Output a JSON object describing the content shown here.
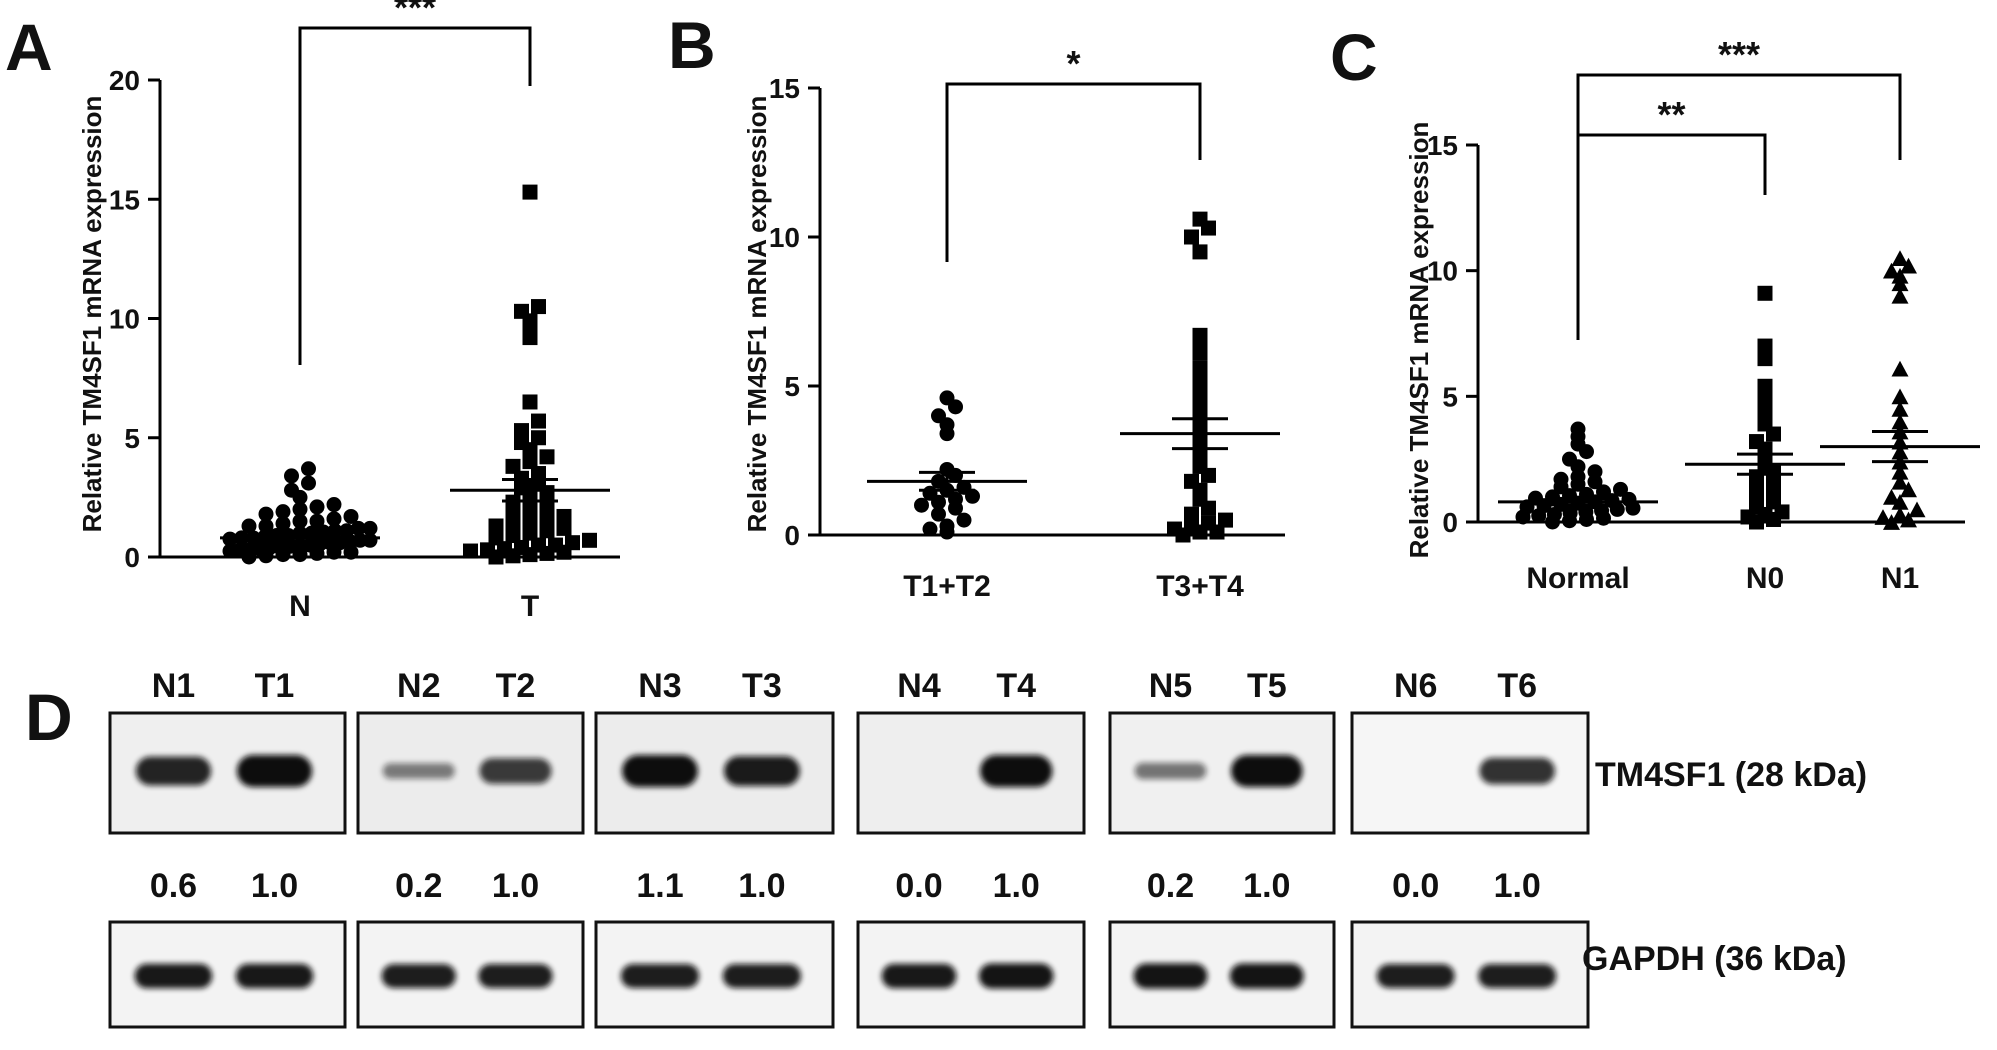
{
  "chart_data": [
    {
      "type": "scatter",
      "panel": "A",
      "ylabel": "Relative TM4SF1 mRNA expression",
      "ylim": [
        0,
        20
      ],
      "yticks": [
        0,
        5,
        10,
        15,
        20
      ],
      "categories": [
        "N",
        "T"
      ],
      "series": [
        {
          "marker": "circle",
          "values": [
            0.0,
            0.05,
            0.1,
            0.1,
            0.15,
            0.2,
            0.2,
            0.25,
            0.3,
            0.3,
            0.35,
            0.4,
            0.4,
            0.45,
            0.5,
            0.5,
            0.55,
            0.6,
            0.6,
            0.65,
            0.7,
            0.7,
            0.75,
            0.8,
            0.8,
            0.85,
            0.9,
            0.9,
            1.0,
            1.0,
            1.05,
            1.1,
            1.1,
            1.2,
            1.2,
            1.3,
            1.3,
            1.4,
            1.5,
            1.5,
            1.6,
            1.7,
            1.8,
            1.9,
            2.0,
            2.1,
            2.2,
            2.5,
            2.8,
            3.1,
            3.4,
            3.7
          ],
          "mean": 0.8,
          "sem": 0.12
        },
        {
          "marker": "square",
          "values": [
            0.0,
            0.05,
            0.1,
            0.15,
            0.2,
            0.25,
            0.3,
            0.35,
            0.4,
            0.5,
            0.5,
            0.6,
            0.7,
            0.8,
            0.9,
            1.0,
            1.1,
            1.2,
            1.3,
            1.4,
            1.5,
            1.6,
            1.7,
            1.8,
            2.0,
            2.1,
            2.3,
            2.5,
            2.7,
            2.9,
            3.1,
            3.3,
            3.5,
            3.8,
            4.0,
            4.2,
            4.5,
            4.8,
            5.0,
            5.3,
            5.7,
            6.5,
            9.2,
            9.6,
            9.9,
            10.3,
            10.5,
            15.3
          ],
          "mean": 2.8,
          "sem": 0.45
        }
      ],
      "significance": [
        {
          "from": "N",
          "to": "T",
          "label": "***"
        }
      ]
    },
    {
      "type": "scatter",
      "panel": "B",
      "ylabel": "Relative TM4SF1 mRNA expression",
      "ylim": [
        0,
        15
      ],
      "yticks": [
        0,
        5,
        10,
        15
      ],
      "categories": [
        "T1+T2",
        "T3+T4"
      ],
      "series": [
        {
          "marker": "circle",
          "values": [
            0.1,
            0.2,
            0.3,
            0.5,
            0.7,
            0.9,
            1.0,
            1.1,
            1.2,
            1.3,
            1.4,
            1.5,
            1.6,
            1.8,
            2.0,
            2.2,
            3.4,
            3.7,
            4.0,
            4.3,
            4.6
          ],
          "mean": 1.8,
          "sem": 0.3
        },
        {
          "marker": "square",
          "values": [
            0.0,
            0.1,
            0.1,
            0.2,
            0.3,
            0.4,
            0.5,
            0.7,
            0.9,
            1.2,
            1.5,
            1.8,
            2.0,
            2.3,
            2.6,
            3.0,
            3.4,
            3.8,
            4.1,
            4.5,
            5.0,
            5.3,
            5.6,
            6.1,
            6.3,
            6.7,
            9.5,
            10.0,
            10.3,
            10.6
          ],
          "mean": 3.4,
          "sem": 0.5
        }
      ],
      "significance": [
        {
          "from": "T1+T2",
          "to": "T3+T4",
          "label": "*"
        }
      ]
    },
    {
      "type": "scatter",
      "panel": "C",
      "ylabel": "Relative TM4SF1 mRNA expression",
      "ylim": [
        0,
        15
      ],
      "yticks": [
        0,
        5,
        10,
        15
      ],
      "categories": [
        "Normal",
        "N0",
        "N1"
      ],
      "series": [
        {
          "marker": "circle",
          "values": [
            0.0,
            0.05,
            0.1,
            0.15,
            0.2,
            0.25,
            0.3,
            0.35,
            0.4,
            0.45,
            0.5,
            0.55,
            0.6,
            0.65,
            0.7,
            0.75,
            0.8,
            0.85,
            0.9,
            0.95,
            1.0,
            1.05,
            1.1,
            1.2,
            1.3,
            1.4,
            1.5,
            1.6,
            1.7,
            1.8,
            2.0,
            2.2,
            2.5,
            2.8,
            3.1,
            3.4,
            3.7
          ],
          "mean": 0.8,
          "sem": 0.12
        },
        {
          "marker": "square",
          "values": [
            0.0,
            0.1,
            0.2,
            0.3,
            0.4,
            0.6,
            0.8,
            1.0,
            1.2,
            1.4,
            1.6,
            1.8,
            2.0,
            2.3,
            2.6,
            2.9,
            3.2,
            3.5,
            3.9,
            4.2,
            4.6,
            5.0,
            5.4,
            6.5,
            7.0,
            9.1
          ],
          "mean": 2.3,
          "sem": 0.4
        },
        {
          "marker": "triangle",
          "values": [
            0.0,
            0.1,
            0.2,
            0.3,
            0.5,
            0.8,
            1.0,
            1.3,
            1.6,
            2.0,
            2.4,
            2.8,
            3.2,
            3.6,
            4.0,
            4.5,
            5.0,
            6.1,
            9.0,
            9.5,
            9.8,
            10.0,
            10.2,
            10.5
          ],
          "mean": 3.0,
          "sem": 0.6
        }
      ],
      "significance": [
        {
          "from": "Normal",
          "to": "N0",
          "label": "**"
        },
        {
          "from": "Normal",
          "to": "N1",
          "label": "***"
        }
      ]
    }
  ],
  "panels": {
    "a": {
      "letter": "A"
    },
    "b": {
      "letter": "B"
    },
    "c": {
      "letter": "C"
    },
    "d": {
      "letter": "D"
    }
  },
  "western_blot": {
    "protein_labels": [
      "TM4SF1 (28 kDa)",
      "GAPDH (36 kDa)"
    ],
    "blots": [
      {
        "lanes": [
          "N1",
          "T1"
        ],
        "ratios": [
          "0.6",
          "1.0"
        ],
        "tm4sf1": [
          0.85,
          1.0
        ],
        "gapdh": [
          0.9,
          0.9
        ]
      },
      {
        "lanes": [
          "N2",
          "T2"
        ],
        "ratios": [
          "0.2",
          "1.0"
        ],
        "tm4sf1": [
          0.25,
          0.7
        ],
        "gapdh": [
          0.85,
          0.85
        ]
      },
      {
        "lanes": [
          "N3",
          "T3"
        ],
        "ratios": [
          "1.1",
          "1.0"
        ],
        "tm4sf1": [
          1.0,
          0.9
        ],
        "gapdh": [
          0.85,
          0.85
        ]
      },
      {
        "lanes": [
          "N4",
          "T4"
        ],
        "ratios": [
          "0.0",
          "1.0"
        ],
        "tm4sf1": [
          0.0,
          1.0
        ],
        "gapdh": [
          0.9,
          0.95
        ]
      },
      {
        "lanes": [
          "N5",
          "T5"
        ],
        "ratios": [
          "0.2",
          "1.0"
        ],
        "tm4sf1": [
          0.3,
          1.0
        ],
        "gapdh": [
          0.95,
          0.95
        ]
      },
      {
        "lanes": [
          "N6",
          "T6"
        ],
        "ratios": [
          "0.0",
          "1.0"
        ],
        "tm4sf1": [
          0.0,
          0.75
        ],
        "gapdh": [
          0.85,
          0.85
        ]
      }
    ]
  }
}
